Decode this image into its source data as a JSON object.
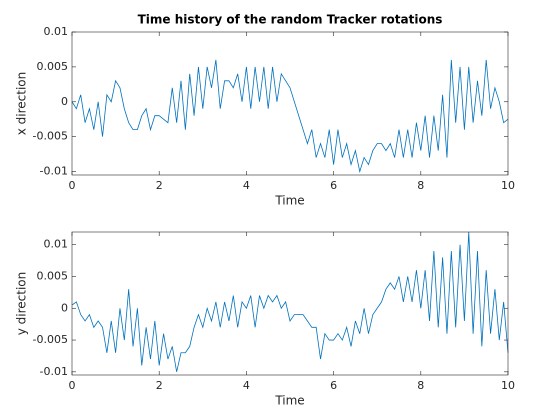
{
  "chart_data": [
    {
      "type": "line",
      "title": "Time history of the random Tracker rotations",
      "xlabel": "Time",
      "ylabel": "x direction",
      "color": "#0072bd",
      "grid": false,
      "xlim": [
        0,
        10
      ],
      "xticks": [
        0,
        2,
        4,
        6,
        8,
        10
      ],
      "ylim": [
        -0.0105,
        0.01
      ],
      "yticks": [
        -0.01,
        -0.005,
        0,
        0.005,
        0.01
      ],
      "x": [
        0,
        0.1,
        0.2,
        0.3,
        0.4,
        0.5,
        0.6,
        0.7,
        0.8,
        0.9,
        1,
        1.1,
        1.2,
        1.3,
        1.4,
        1.5,
        1.6,
        1.7,
        1.8,
        1.9,
        2,
        2.1,
        2.2,
        2.3,
        2.4,
        2.5,
        2.6,
        2.7,
        2.8,
        2.9,
        3,
        3.1,
        3.2,
        3.3,
        3.4,
        3.5,
        3.6,
        3.7,
        3.8,
        3.9,
        4,
        4.1,
        4.2,
        4.3,
        4.4,
        4.5,
        4.6,
        4.7,
        4.8,
        4.9,
        5,
        5.1,
        5.2,
        5.3,
        5.4,
        5.5,
        5.6,
        5.7,
        5.8,
        5.9,
        6,
        6.1,
        6.2,
        6.3,
        6.4,
        6.5,
        6.6,
        6.7,
        6.8,
        6.9,
        7,
        7.1,
        7.2,
        7.3,
        7.4,
        7.5,
        7.6,
        7.7,
        7.8,
        7.9,
        8,
        8.1,
        8.2,
        8.3,
        8.4,
        8.5,
        8.6,
        8.7,
        8.8,
        8.9,
        9,
        9.1,
        9.2,
        9.3,
        9.4,
        9.5,
        9.6,
        9.7,
        9.8,
        9.9,
        10
      ],
      "values": [
        0,
        -0.001,
        0.001,
        -0.003,
        -0.001,
        -0.004,
        0,
        -0.005,
        0.001,
        0,
        0.003,
        0.002,
        -0.001,
        -0.003,
        -0.004,
        -0.004,
        -0.002,
        -0.001,
        -0.004,
        -0.002,
        -0.002,
        -0.0025,
        -0.003,
        0.002,
        -0.003,
        0.003,
        -0.004,
        0.004,
        -0.002,
        0.005,
        -0.001,
        0.005,
        0.002,
        0.006,
        -0.001,
        0.003,
        0.003,
        0.002,
        0.004,
        0,
        0.005,
        -0.001,
        0.005,
        0,
        0.005,
        -0.001,
        0.005,
        0,
        0.004,
        0.003,
        0.002,
        0,
        -0.002,
        -0.004,
        -0.006,
        -0.004,
        -0.008,
        -0.006,
        -0.008,
        -0.004,
        -0.009,
        -0.004,
        -0.008,
        -0.006,
        -0.009,
        -0.007,
        -0.01,
        -0.008,
        -0.009,
        -0.007,
        -0.006,
        -0.006,
        -0.007,
        -0.006,
        -0.008,
        -0.004,
        -0.008,
        -0.004,
        -0.008,
        -0.003,
        -0.007,
        -0.002,
        -0.008,
        -0.002,
        -0.007,
        0.001,
        -0.008,
        0.006,
        -0.003,
        0.005,
        -0.004,
        0.005,
        -0.003,
        0.003,
        -0.002,
        0.006,
        -0.001,
        0.002,
        0,
        -0.003,
        -0.0025
      ]
    },
    {
      "type": "line",
      "xlabel": "Time",
      "ylabel": "y direction",
      "color": "#0072bd",
      "grid": false,
      "xlim": [
        0,
        10
      ],
      "xticks": [
        0,
        2,
        4,
        6,
        8,
        10
      ],
      "ylim": [
        -0.0105,
        0.012
      ],
      "yticks": [
        -0.01,
        -0.005,
        0,
        0.005,
        0.01
      ],
      "x": [
        0,
        0.1,
        0.2,
        0.3,
        0.4,
        0.5,
        0.6,
        0.7,
        0.8,
        0.9,
        1,
        1.1,
        1.2,
        1.3,
        1.4,
        1.5,
        1.6,
        1.7,
        1.8,
        1.9,
        2,
        2.1,
        2.2,
        2.3,
        2.4,
        2.5,
        2.6,
        2.7,
        2.8,
        2.9,
        3,
        3.1,
        3.2,
        3.3,
        3.4,
        3.5,
        3.6,
        3.7,
        3.8,
        3.9,
        4,
        4.1,
        4.2,
        4.3,
        4.4,
        4.5,
        4.6,
        4.7,
        4.8,
        4.9,
        5,
        5.1,
        5.2,
        5.3,
        5.4,
        5.5,
        5.6,
        5.7,
        5.8,
        5.9,
        6,
        6.1,
        6.2,
        6.3,
        6.4,
        6.5,
        6.6,
        6.7,
        6.8,
        6.9,
        7,
        7.1,
        7.2,
        7.3,
        7.4,
        7.5,
        7.6,
        7.7,
        7.8,
        7.9,
        8,
        8.1,
        8.2,
        8.3,
        8.4,
        8.5,
        8.6,
        8.7,
        8.8,
        8.9,
        9,
        9.1,
        9.2,
        9.3,
        9.4,
        9.5,
        9.6,
        9.7,
        9.8,
        9.9,
        10
      ],
      "values": [
        0.0005,
        0.001,
        -0.001,
        -0.002,
        -0.001,
        -0.003,
        -0.002,
        -0.003,
        -0.007,
        -0.002,
        -0.007,
        0,
        -0.005,
        0.003,
        -0.006,
        0,
        -0.009,
        -0.003,
        -0.008,
        -0.002,
        -0.009,
        -0.004,
        -0.008,
        -0.006,
        -0.01,
        -0.007,
        -0.007,
        -0.006,
        -0.003,
        -0.001,
        -0.003,
        0,
        -0.002,
        0.001,
        -0.003,
        0.001,
        -0.002,
        0.002,
        -0.003,
        0.001,
        0,
        0.002,
        -0.003,
        0.002,
        0,
        0.002,
        0.001,
        0.002,
        0,
        0.001,
        -0.002,
        -0.001,
        -0.001,
        -0.001,
        -0.002,
        -0.003,
        -0.003,
        -0.008,
        -0.004,
        -0.005,
        -0.005,
        -0.004,
        -0.005,
        -0.003,
        -0.006,
        -0.002,
        -0.004,
        0,
        -0.004,
        -0.001,
        0,
        0.001,
        0.003,
        0.004,
        0.003,
        0.005,
        0.001,
        0.005,
        0.001,
        0.006,
        0,
        0.006,
        -0.002,
        0.009,
        -0.003,
        0.008,
        -0.004,
        0.009,
        -0.003,
        0.01,
        -0.002,
        0.012,
        -0.004,
        0.009,
        -0.006,
        0.006,
        -0.004,
        0.003,
        -0.005,
        0.001,
        -0.007
      ]
    }
  ]
}
